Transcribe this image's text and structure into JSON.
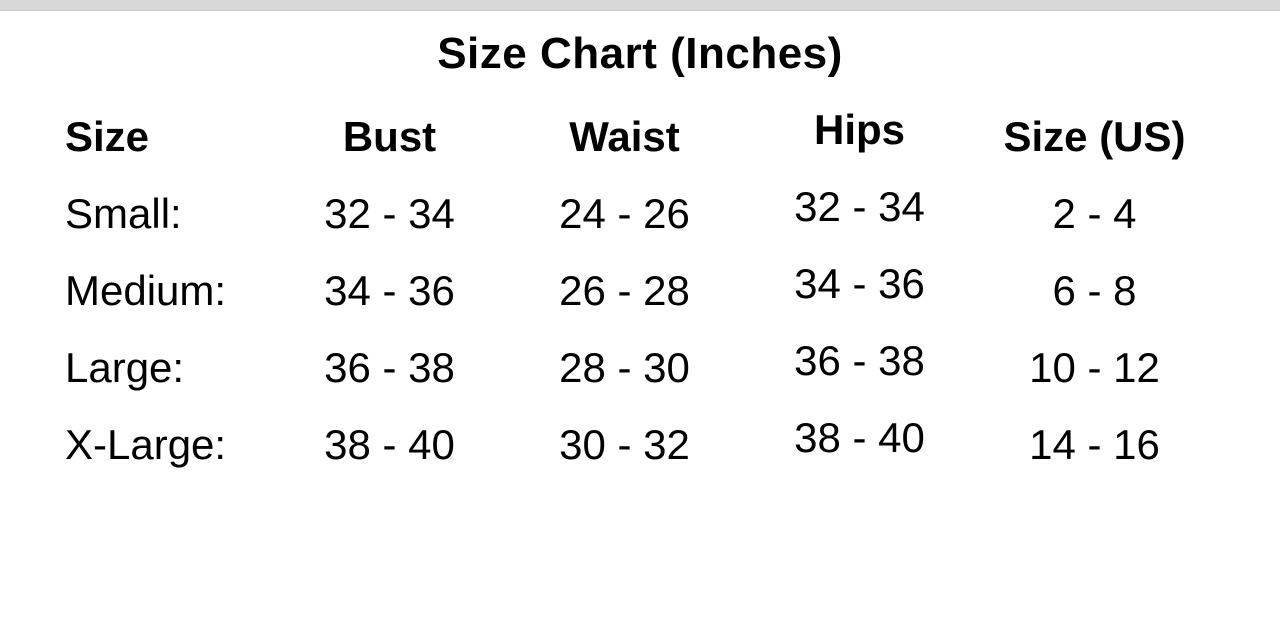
{
  "page": {
    "title": "Size Chart (Inches)"
  },
  "colors": {
    "background": "#ffffff",
    "top_bar": "#d8d8d8",
    "text": "#000000"
  },
  "chart_data": {
    "type": "table",
    "title": "Size Chart (Inches)",
    "columns": [
      "Size",
      "Bust",
      "Waist",
      "Hips",
      "Size (US)"
    ],
    "rows": [
      [
        "Small:",
        "32 - 34",
        "24 - 26",
        "32 - 34",
        "2 - 4"
      ],
      [
        "Medium:",
        "34 - 36",
        "26 - 28",
        "34 - 36",
        "6 - 8"
      ],
      [
        "Large:",
        "36 - 38",
        "28 - 30",
        "36 - 38",
        "10 - 12"
      ],
      [
        "X-Large:",
        "38 - 40",
        "30 - 32",
        "38 - 40",
        "14 - 16"
      ]
    ],
    "units": "Inches",
    "layout": {
      "grid": false,
      "borders": false,
      "header_style": "bold",
      "first_column_align": "left",
      "other_columns_align": "center"
    }
  }
}
